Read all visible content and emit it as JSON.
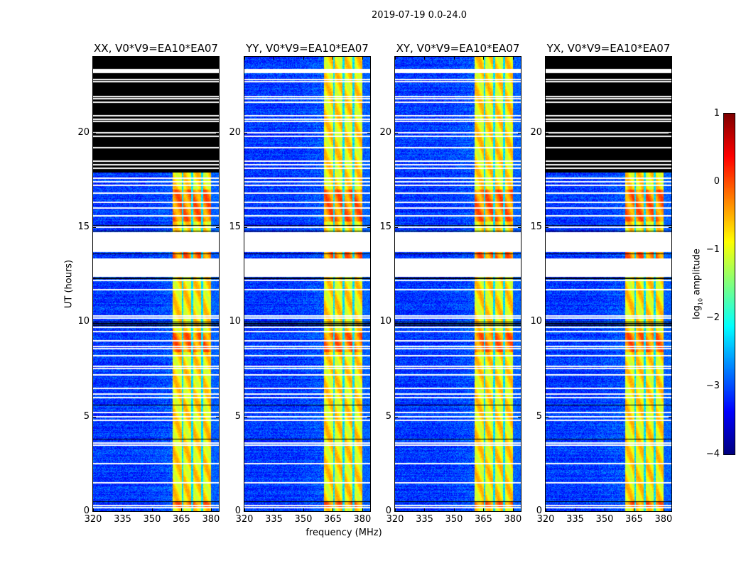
{
  "chart_data": {
    "type": "heatmap",
    "title": "2019-07-19 0.0-24.0",
    "xlabel": "frequency (MHz)",
    "ylabel": "UT (hours)",
    "xlim": [
      320,
      384
    ],
    "ylim": [
      0,
      24
    ],
    "xticks": [
      "320",
      "335",
      "350",
      "365",
      "380"
    ],
    "xtick_values": [
      320,
      335,
      350,
      365,
      380
    ],
    "yticks": [
      "0",
      "5",
      "10",
      "15",
      "20"
    ],
    "ytick_values": [
      0,
      5,
      10,
      15,
      20
    ],
    "colormap": "jet",
    "colorbar": {
      "label": "log",
      "label_sub": "10",
      "label_rest": " amplitude",
      "range": [
        -4,
        1
      ],
      "ticks": [
        "1",
        "0",
        "−1",
        "−2",
        "−3",
        "−4"
      ],
      "tick_values": [
        1,
        0,
        -1,
        -2,
        -3,
        -4
      ]
    },
    "panels": [
      {
        "title": "XX, V0*V9=EA10*EA07",
        "flagged_above_hours": 17.9
      },
      {
        "title": "YY, V0*V9=EA10*EA07",
        "flagged_above_hours": null
      },
      {
        "title": "XY, V0*V9=EA10*EA07",
        "flagged_above_hours": null
      },
      {
        "title": "YX, V0*V9=EA10*EA07",
        "flagged_above_hours": 17.9
      }
    ],
    "background_level": -3.1,
    "rfi_band_mhz": [
      360.5,
      380
    ],
    "rfi_band_level": -0.8,
    "rfi_notches_mhz": [
      365.5,
      370.5,
      375.5
    ],
    "gap_hours": [
      [
        12.37,
        13.35
      ],
      [
        13.69,
        14.74
      ],
      [
        23.14,
        23.36
      ]
    ],
    "white_line_hours": [
      0.2,
      0.3,
      1.5,
      2.5,
      3.5,
      3.6,
      4.8,
      5.0,
      5.2,
      6.0,
      6.2,
      6.5,
      7.2,
      7.55,
      7.65,
      8.2,
      8.6,
      8.7,
      9.0,
      9.5,
      9.7,
      10.2,
      10.3,
      11.7,
      12.2,
      15.0,
      15.6,
      16.0,
      16.3,
      16.8,
      17.2,
      17.4,
      17.6,
      18.1,
      18.3,
      18.5,
      19.2,
      19.8,
      20.0,
      20.6,
      20.7,
      20.9,
      21.6,
      21.8,
      21.9,
      22.7,
      22.8
    ],
    "black_line_hours": [
      0.5,
      3.8,
      5.6,
      9.8,
      9.9,
      10.0,
      12.3,
      13.6,
      14.8,
      15.1
    ],
    "hot_hours": [
      [
        15.3,
        17.0
      ],
      [
        8.4,
        9.4
      ],
      [
        13.35,
        13.69
      ],
      [
        0.2,
        0.5
      ]
    ]
  }
}
